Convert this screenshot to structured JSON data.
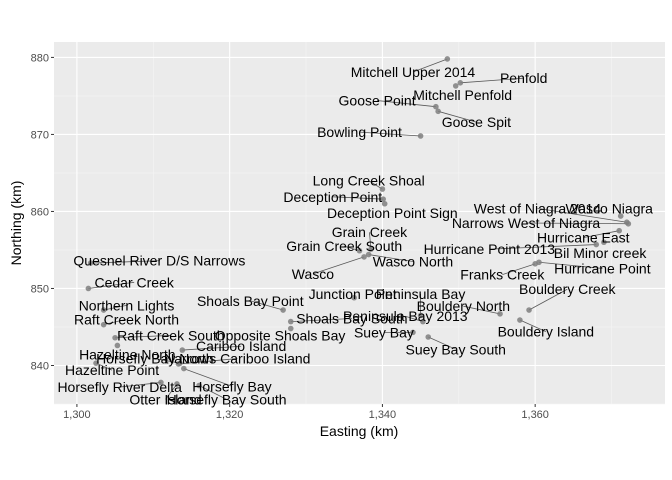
{
  "chart_data": {
    "type": "scatter",
    "xlabel": "Easting (km)",
    "ylabel": "Northing (km)",
    "xlim": [
      1297,
      1377
    ],
    "ylim": [
      835,
      882
    ],
    "x_ticks": [
      1300,
      1320,
      1340,
      1360
    ],
    "x_tick_labels": [
      "1,300",
      "1,320",
      "1,340",
      "1,360"
    ],
    "y_ticks": [
      840,
      850,
      860,
      870,
      880
    ],
    "y_tick_labels": [
      "840",
      "850",
      "860",
      "870",
      "880"
    ],
    "grid": true,
    "colors": {
      "panel": "#ebebeb",
      "grid_major": "#ffffff",
      "point": "#7f7f7f",
      "segment": "#595959"
    },
    "points": [
      {
        "label": "Mitchell Upper 2014",
        "x": 1348.5,
        "y": 879.8,
        "lx": 1344,
        "ly": 878.1
      },
      {
        "label": "Penfold",
        "x": 1350.2,
        "y": 876.7,
        "lx": 1358.5,
        "ly": 877.3
      },
      {
        "label": "Mitchell Penfold",
        "x": 1349.6,
        "y": 876.3,
        "lx": 1350.5,
        "ly": 875.1
      },
      {
        "label": "Goose Point",
        "x": 1347.0,
        "y": 873.6,
        "lx": 1339.3,
        "ly": 874.4
      },
      {
        "label": "Goose Spit",
        "x": 1347.3,
        "y": 873.0,
        "lx": 1352.3,
        "ly": 871.6
      },
      {
        "label": "Bowling Point",
        "x": 1345.0,
        "y": 869.8,
        "lx": 1337.0,
        "ly": 870.3
      },
      {
        "label": "Long Creek Shoal",
        "x": 1340.0,
        "y": 862.9,
        "lx": 1338.2,
        "ly": 864.0
      },
      {
        "label": "Deception Point",
        "x": 1340.1,
        "y": 861.6,
        "lx": 1333.5,
        "ly": 861.9
      },
      {
        "label": "Deception Point Sign",
        "x": 1340.3,
        "y": 861.0,
        "lx": 1341.3,
        "ly": 859.8
      },
      {
        "label": "Grain Creek",
        "x": 1338.5,
        "y": 855.1,
        "lx": 1338.3,
        "ly": 857.3
      },
      {
        "label": "Grain Creek South",
        "x": 1337.0,
        "y": 854.9,
        "lx": 1335.0,
        "ly": 855.5
      },
      {
        "label": "Wasco North",
        "x": 1338.2,
        "y": 854.4,
        "lx": 1344.0,
        "ly": 853.5
      },
      {
        "label": "Wasco",
        "x": 1337.6,
        "y": 854.1,
        "lx": 1330.9,
        "ly": 851.9
      },
      {
        "label": "Quesnel River D/S Narrows",
        "x": 1301.8,
        "y": 853.3,
        "lx": 1310.8,
        "ly": 853.6
      },
      {
        "label": "Cedar Creek",
        "x": 1301.5,
        "y": 850.0,
        "lx": 1307.5,
        "ly": 850.8
      },
      {
        "label": "Junction Point",
        "x": 1336.3,
        "y": 848.8,
        "lx": 1336.1,
        "ly": 849.3
      },
      {
        "label": "Peninsula Bay",
        "x": 1345.0,
        "y": 846.5,
        "lx": 1345.0,
        "ly": 849.3
      },
      {
        "label": "Shoals Bay Point",
        "x": 1327.0,
        "y": 847.2,
        "lx": 1322.7,
        "ly": 848.4
      },
      {
        "label": "Northern Lights",
        "x": 1303.5,
        "y": 847.2,
        "lx": 1306.5,
        "ly": 847.8
      },
      {
        "label": "Raft Creek North",
        "x": 1303.5,
        "y": 845.3,
        "lx": 1306.5,
        "ly": 846.0
      },
      {
        "label": "Shoals Bay South",
        "x": 1328.0,
        "y": 845.7,
        "lx": 1336.0,
        "ly": 846.1
      },
      {
        "label": "Peninsula Bay 2013",
        "x": 1345.3,
        "y": 845.7,
        "lx": 1343.0,
        "ly": 846.4
      },
      {
        "label": "Bouldery North",
        "x": 1355.4,
        "y": 846.7,
        "lx": 1350.6,
        "ly": 847.7
      },
      {
        "label": "Bouldery Creek",
        "x": 1359.2,
        "y": 847.2,
        "lx": 1364.2,
        "ly": 849.9
      },
      {
        "label": "Bouldery Island",
        "x": 1358.0,
        "y": 845.9,
        "lx": 1361.4,
        "ly": 844.4
      },
      {
        "label": "Suey Bay",
        "x": 1344.0,
        "y": 844.3,
        "lx": 1340.2,
        "ly": 844.3
      },
      {
        "label": "Opposite Shoals Bay",
        "x": 1328.0,
        "y": 844.8,
        "lx": 1326.6,
        "ly": 843.9
      },
      {
        "label": "Raft Creek South",
        "x": 1305.0,
        "y": 843.6,
        "lx": 1312.3,
        "ly": 843.9
      },
      {
        "label": "Suey Bay South",
        "x": 1346.0,
        "y": 843.7,
        "lx": 1349.6,
        "ly": 842.1
      },
      {
        "label": "Cariboo Island",
        "x": 1313.8,
        "y": 842.0,
        "lx": 1321.5,
        "ly": 842.5
      },
      {
        "label": "Hazeltine North",
        "x": 1305.3,
        "y": 842.6,
        "lx": 1306.6,
        "ly": 841.4
      },
      {
        "label": "Horsefly Bay North",
        "x": 1313.5,
        "y": 840.3,
        "lx": 1310.2,
        "ly": 840.9
      },
      {
        "label": "Narrows Cariboo Island",
        "x": 1313.3,
        "y": 840.2,
        "lx": 1321.0,
        "ly": 840.9
      },
      {
        "label": "Hazeltine Point",
        "x": 1302.5,
        "y": 840.3,
        "lx": 1304.6,
        "ly": 839.4
      },
      {
        "label": "Horsefly Bay",
        "x": 1314.0,
        "y": 839.6,
        "lx": 1320.3,
        "ly": 837.3
      },
      {
        "label": "Horsefly River Delta",
        "x": 1311.0,
        "y": 837.8,
        "lx": 1305.6,
        "ly": 837.2
      },
      {
        "label": "Otter Island",
        "x": 1313.1,
        "y": 837.6,
        "lx": 1311.6,
        "ly": 835.6
      },
      {
        "label": "Horsefly Bay South",
        "x": 1316.0,
        "y": 837.4,
        "lx": 1319.6,
        "ly": 835.6
      },
      {
        "label": "West of Niagra 2014",
        "x": 1372.0,
        "y": 858.6,
        "lx": 1360.3,
        "ly": 860.4
      },
      {
        "label": "Wasco Niagra",
        "x": 1371.2,
        "y": 859.4,
        "lx": 1369.7,
        "ly": 860.4
      },
      {
        "label": "Narrows West of Niagra",
        "x": 1372.2,
        "y": 858.4,
        "lx": 1358.8,
        "ly": 858.5
      },
      {
        "label": "Hurricane East",
        "x": 1371.0,
        "y": 857.5,
        "lx": 1366.3,
        "ly": 856.6
      },
      {
        "label": "Hurricane Point 2013",
        "x": 1368.0,
        "y": 855.7,
        "lx": 1354.0,
        "ly": 855.1
      },
      {
        "label": "Bil Minor creek",
        "x": 1369.0,
        "y": 856.0,
        "lx": 1368.5,
        "ly": 854.6
      },
      {
        "label": "Franks Creek",
        "x": 1360.0,
        "y": 853.2,
        "lx": 1355.7,
        "ly": 851.8
      },
      {
        "label": "Hurricane Point",
        "x": 1360.5,
        "y": 853.4,
        "lx": 1368.8,
        "ly": 852.6
      }
    ]
  }
}
